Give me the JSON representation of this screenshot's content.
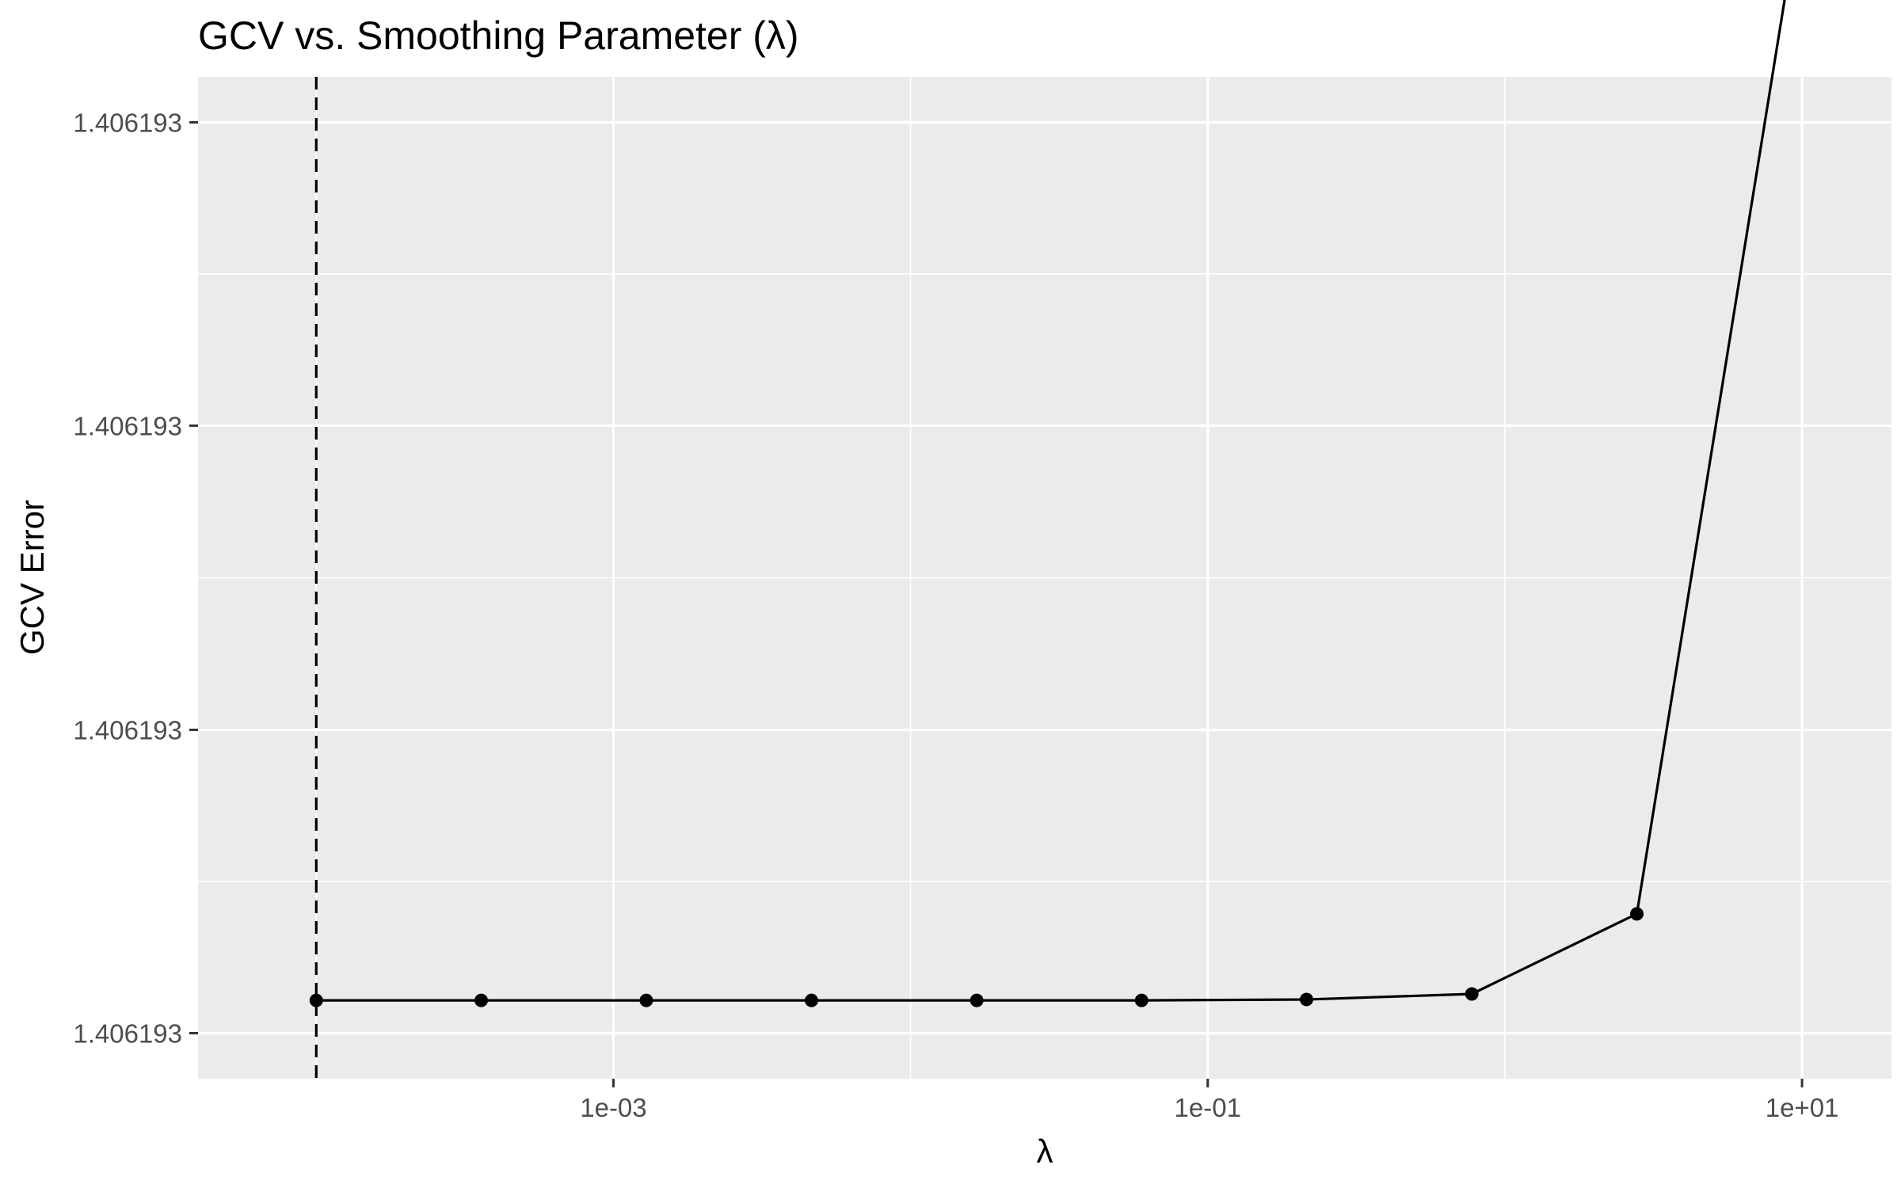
{
  "chart_data": {
    "type": "line",
    "title": "GCV vs. Smoothing Parameter (λ)",
    "xlabel": "λ",
    "ylabel": "GCV Error",
    "x_scale": "log10",
    "xlim": [
      4e-05,
      20
    ],
    "ylim": [
      -0.05,
      1.05
    ],
    "x_ticks": [
      {
        "value": 0.001,
        "label": "1e-03"
      },
      {
        "value": 0.1,
        "label": "1e-01"
      },
      {
        "value": 10,
        "label": "1e+01"
      }
    ],
    "y_ticks": [
      {
        "value": 0.0,
        "label": "1.406193"
      },
      {
        "value": 0.333,
        "label": "1.406193"
      },
      {
        "value": 0.667,
        "label": "1.406193"
      },
      {
        "value": 1.0,
        "label": "1.406193"
      }
    ],
    "series": [
      {
        "x": [
          0.0001,
          0.000359,
          0.00129,
          0.00464,
          0.0167,
          0.0599,
          0.215,
          0.774,
          2.78,
          10
        ],
        "y": [
          0.036,
          0.036,
          0.036,
          0.036,
          0.036,
          0.036,
          0.037,
          0.043,
          0.131,
          1.253
        ],
        "color": "#000000",
        "markers": true
      }
    ],
    "vline": {
      "x": 0.0001,
      "style": "dashed",
      "color": "#000000"
    },
    "grid": true,
    "panel_background": "#ebebeb",
    "grid_color": "#ffffff"
  }
}
